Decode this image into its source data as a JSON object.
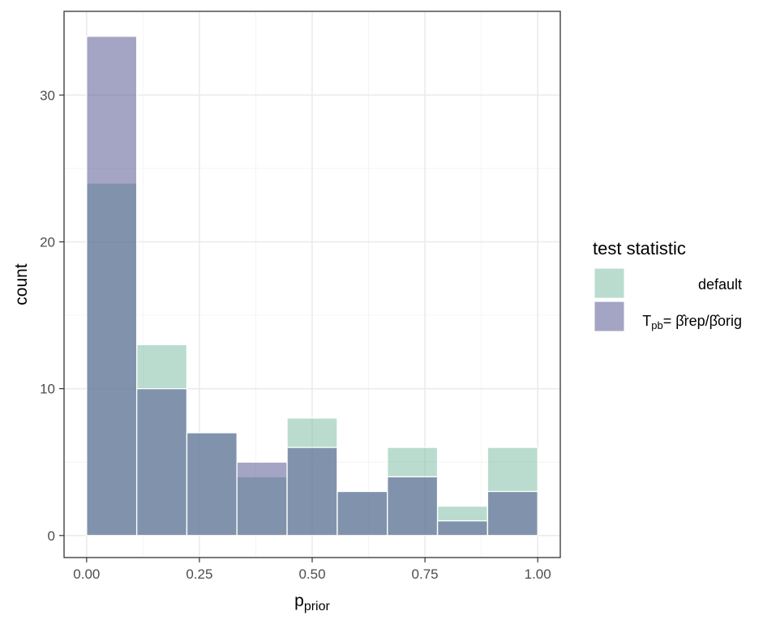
{
  "chart_data": {
    "type": "bar",
    "subtype": "overlaid-histogram",
    "xlabel": "p",
    "xlabel_subscript": "prior",
    "ylabel": "count",
    "xlim": [
      -0.05,
      1.05
    ],
    "ylim": [
      -1.5,
      35.7
    ],
    "x_ticks": [
      0.0,
      0.25,
      0.5,
      0.75,
      1.0
    ],
    "x_tick_labels": [
      "0.00",
      "0.25",
      "0.50",
      "0.75",
      "1.00"
    ],
    "y_ticks": [
      0,
      10,
      20,
      30
    ],
    "y_tick_labels": [
      "0",
      "10",
      "20",
      "30"
    ],
    "bins": [
      {
        "x0": 0.0,
        "x1": 0.1111
      },
      {
        "x0": 0.1111,
        "x1": 0.2222
      },
      {
        "x0": 0.2222,
        "x1": 0.3333
      },
      {
        "x0": 0.3333,
        "x1": 0.4444
      },
      {
        "x0": 0.4444,
        "x1": 0.5556
      },
      {
        "x0": 0.5556,
        "x1": 0.6667
      },
      {
        "x0": 0.6667,
        "x1": 0.7778
      },
      {
        "x0": 0.7778,
        "x1": 0.8889
      },
      {
        "x0": 0.8889,
        "x1": 1.0
      }
    ],
    "series": [
      {
        "name": "default",
        "color": "#7fbfa8",
        "opacity": 0.55,
        "values": [
          24,
          13,
          7,
          4,
          8,
          3,
          6,
          2,
          6
        ]
      },
      {
        "name": "T_pb = β̂_rep/β̂_orig",
        "color": "#4a4a8a",
        "opacity": 0.5,
        "values": [
          34,
          10,
          7,
          5,
          6,
          3,
          4,
          1,
          3
        ]
      }
    ],
    "grid": true,
    "legend": {
      "title": "test statistic",
      "position": "right",
      "entries": [
        {
          "label": "default"
        },
        {
          "label_main": "T",
          "label_sub": "pb",
          "label_formula": "= β̂rep/β̂orig"
        }
      ]
    }
  },
  "colors": {
    "panel_border": "#333333",
    "grid_major": "#ebebeb",
    "grid_minor": "#f4f4f4",
    "bar_outline": "#ffffff"
  }
}
